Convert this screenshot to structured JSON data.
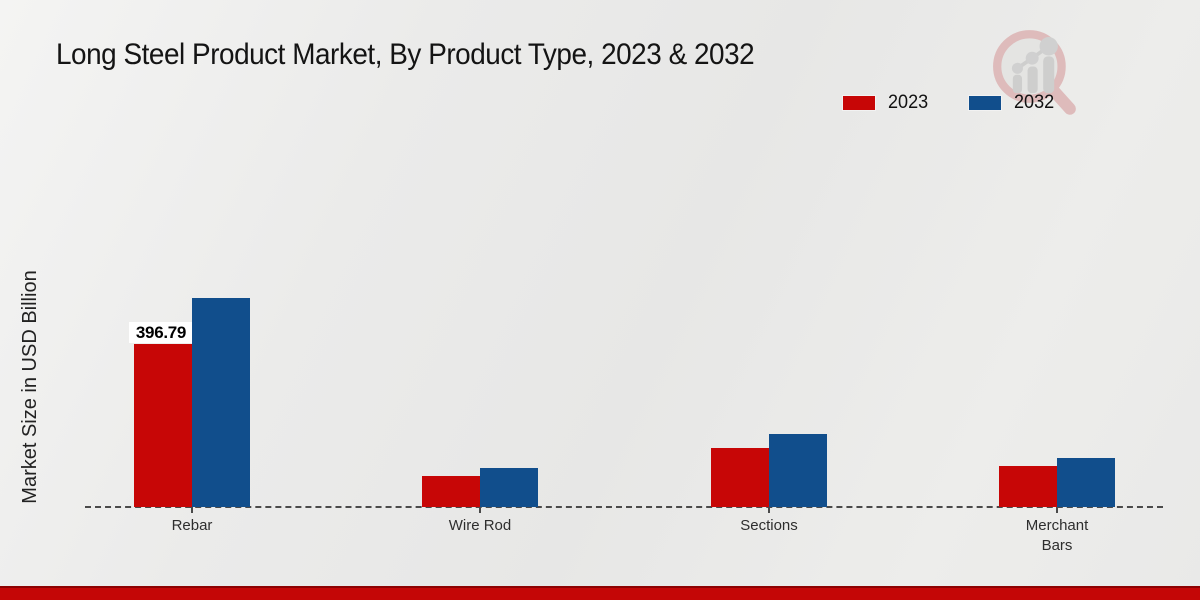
{
  "page": {
    "title": "Long Steel Product Market, By Product Type, 2023 & 2032"
  },
  "chart_data": {
    "type": "bar",
    "title": "Long Steel Product Market, By Product Type, 2023 & 2032",
    "categories": [
      "Rebar",
      "Wire Rod",
      "Sections",
      "Merchant Bars"
    ],
    "series": [
      {
        "name": "2023",
        "color": "#c70606",
        "values": [
          396.79,
          75.5,
          143.6,
          99.8
        ],
        "data_labels": [
          "396.79",
          "",
          "",
          ""
        ]
      },
      {
        "name": "2032",
        "color": "#114e8c",
        "values": [
          508.8,
          94.9,
          177.7,
          119.3
        ],
        "data_labels": [
          "",
          "",
          "",
          ""
        ]
      }
    ],
    "xlabel": "",
    "ylabel": "Market Size in USD Billion",
    "ylim": [
      0,
      560
    ],
    "grid": false,
    "y_axis_ticks_visible": false,
    "baseline_style": "dashed",
    "legend_position": "top-right"
  },
  "legend": {
    "items": [
      {
        "label": "2023",
        "color": "#c70606"
      },
      {
        "label": "2032",
        "color": "#114e8c"
      }
    ]
  },
  "y_axis": {
    "label": "Market Size in USD Billion"
  },
  "annotations": {
    "rebar_2023_label": "396.79"
  },
  "watermark": {
    "icon": "magnifier-bar-chart-logo"
  },
  "footer": {
    "accent_color": "#c40606"
  }
}
